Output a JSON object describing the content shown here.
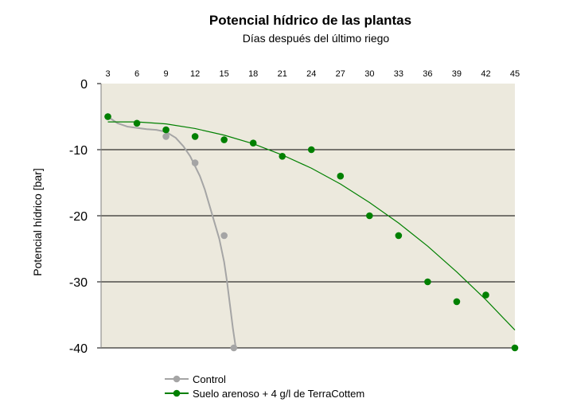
{
  "chart_data": {
    "type": "scatter",
    "title": "Potencial hídrico de las plantas",
    "xlabel": "Días después del último riego",
    "ylabel": "Potencial hídrico [bar]",
    "x_axis_position": "top",
    "xlim": [
      2.3,
      45
    ],
    "ylim": [
      -40,
      0
    ],
    "x_ticks": [
      3,
      6,
      9,
      12,
      15,
      18,
      21,
      24,
      27,
      30,
      33,
      36,
      39,
      42,
      45
    ],
    "y_ticks": [
      0,
      -10,
      -20,
      -30,
      -40
    ],
    "grid": "horizontal major gridlines",
    "plot_background": "#ECE9DD",
    "legend_position": "bottom-left",
    "series": [
      {
        "name": "Control",
        "color": "#A5A5A5",
        "x": [
          3,
          9,
          12,
          15,
          16
        ],
        "y": [
          -5,
          -8,
          -12,
          -23,
          -40
        ],
        "trend_curve": {
          "x": [
            3,
            4,
            5,
            6,
            7,
            8,
            9,
            10,
            10.8,
            11.5,
            12,
            12.5,
            13,
            13.5,
            14,
            14.5,
            15,
            15.3,
            15.6,
            15.9,
            16.2
          ],
          "y": [
            -5,
            -6,
            -6.5,
            -6.7,
            -6.9,
            -7,
            -7.3,
            -8.2,
            -9.5,
            -11,
            -12.5,
            -14,
            -16,
            -18.5,
            -21,
            -23.5,
            -27,
            -30,
            -33.5,
            -37,
            -40
          ]
        }
      },
      {
        "name": "Suelo arenoso + 4 g/l de TerraCottem",
        "color": "#008000",
        "x": [
          3,
          6,
          9,
          12,
          15,
          18,
          21,
          24,
          27,
          30,
          33,
          36,
          39,
          42,
          45
        ],
        "y": [
          -5,
          -6,
          -7,
          -8,
          -8.5,
          -9,
          -11,
          -10,
          -14,
          -20,
          -23,
          -30,
          -33,
          -32,
          -40
        ],
        "trend_curve": {
          "x": [
            3,
            6,
            9,
            12,
            15,
            18,
            21,
            24,
            27,
            30,
            33,
            36,
            39,
            42,
            45
          ],
          "y": [
            -5.8,
            -5.8,
            -6.1,
            -6.8,
            -7.8,
            -9.1,
            -10.8,
            -12.8,
            -15.2,
            -18,
            -21.1,
            -24.6,
            -28.5,
            -32.7,
            -37.3
          ]
        }
      }
    ]
  }
}
